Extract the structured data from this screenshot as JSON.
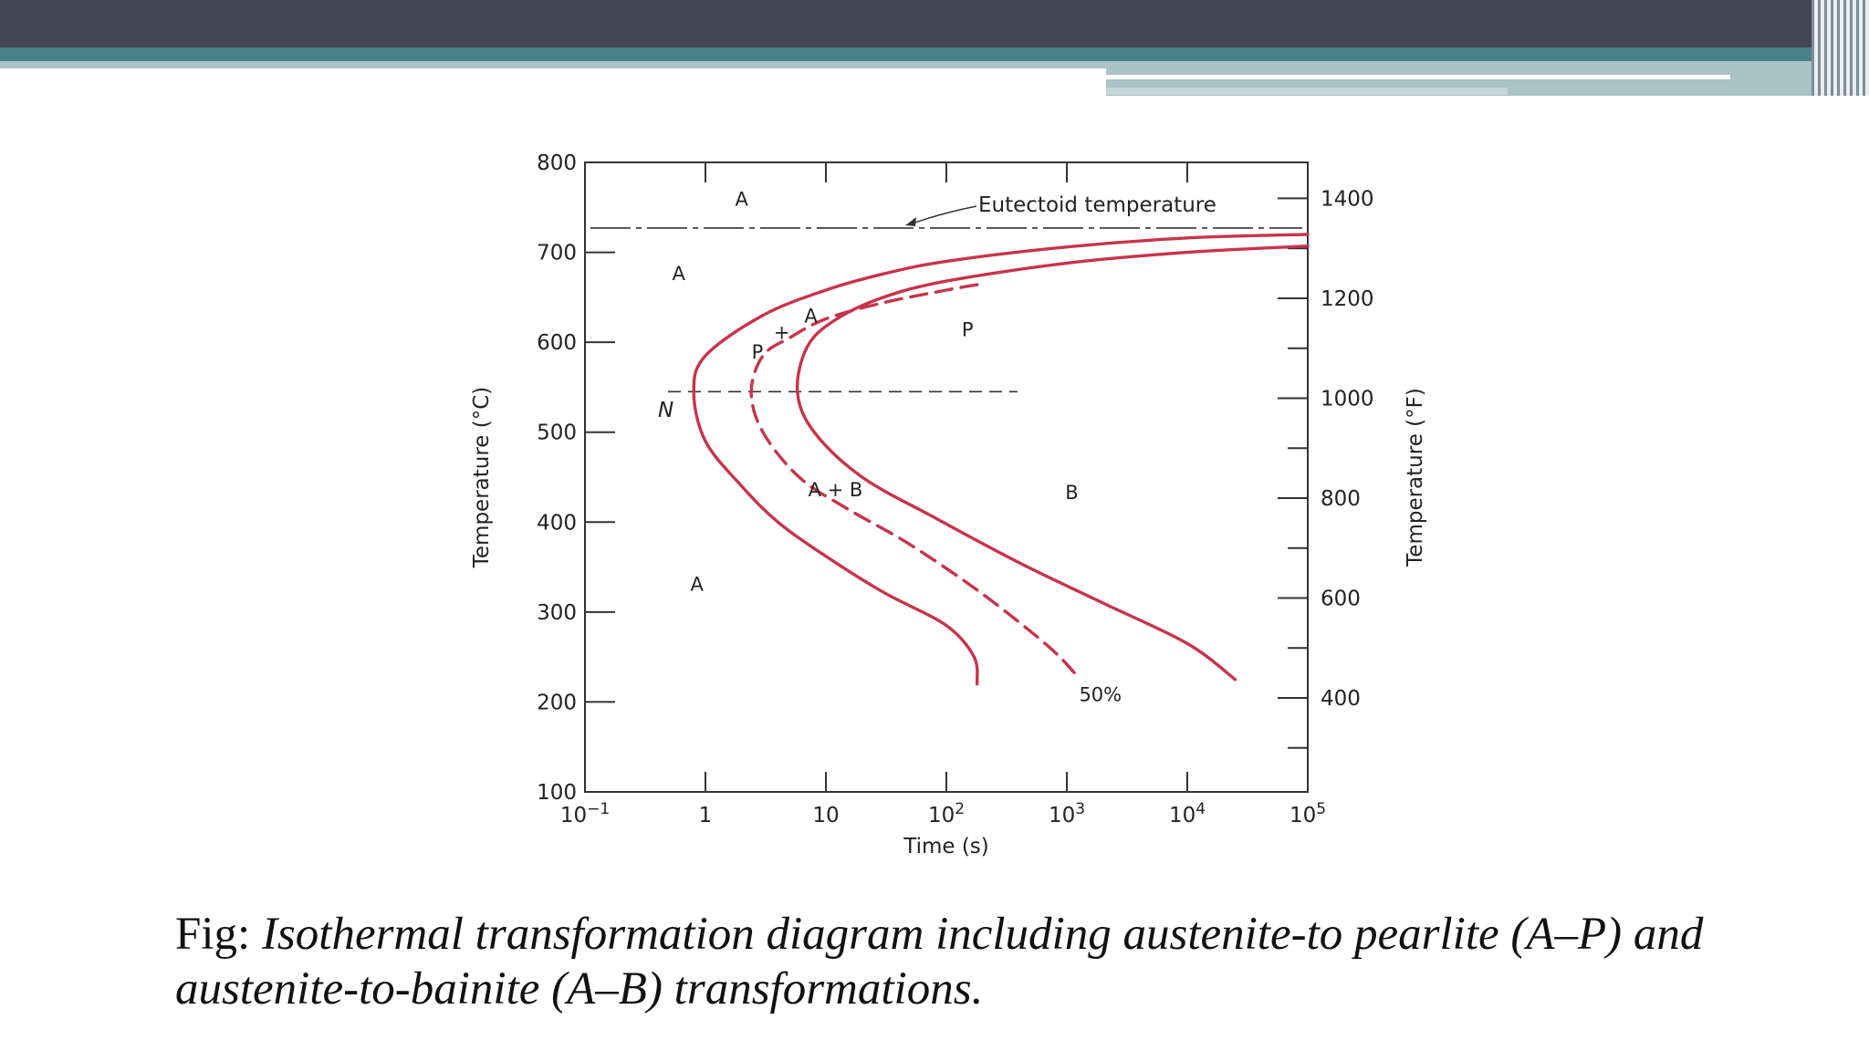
{
  "header": {
    "accent_dark": "#454558",
    "accent_teal": "#4a8187",
    "accent_light": "#a9c3c6"
  },
  "chart_data": {
    "type": "line",
    "xlabel": "Time (s)",
    "x_scale": "log",
    "xlim": [
      0.1,
      100000
    ],
    "x_ticks": [
      {
        "value": 0.1,
        "base": "10",
        "exp": "−1"
      },
      {
        "value": 1,
        "base": "1",
        "exp": ""
      },
      {
        "value": 10,
        "base": "10",
        "exp": ""
      },
      {
        "value": 100,
        "base": "10",
        "exp": "2"
      },
      {
        "value": 1000,
        "base": "10",
        "exp": "3"
      },
      {
        "value": 10000,
        "base": "10",
        "exp": "4"
      },
      {
        "value": 100000,
        "base": "10",
        "exp": "5"
      }
    ],
    "ylabel_left": "Temperature (°C)",
    "ylabel_right": "Temperature (°F)",
    "ylim": [
      100,
      800
    ],
    "y_ticks_left": [
      "100",
      "200",
      "300",
      "400",
      "500",
      "600",
      "700",
      "800"
    ],
    "y_ticks_right": [
      "400",
      "600",
      "800",
      "1000",
      "1200",
      "1400"
    ],
    "y_ticks_right_values": [
      400,
      600,
      800,
      1000,
      1200,
      1400
    ],
    "eutectoid_temperature": 727,
    "eutectoid_label": "Eutectoid temperature",
    "nose_temperature": 545,
    "series": [
      {
        "style": "solid",
        "points": [
          [
            100000,
            720
          ],
          [
            10000,
            716
          ],
          [
            1000,
            706
          ],
          [
            100,
            690
          ],
          [
            30,
            676
          ],
          [
            10,
            658
          ],
          [
            3,
            630
          ],
          [
            1,
            585
          ],
          [
            0.8,
            545
          ],
          [
            1,
            490
          ],
          [
            2,
            440
          ],
          [
            4,
            400
          ],
          [
            10,
            362
          ],
          [
            30,
            322
          ],
          [
            100,
            285
          ],
          [
            170,
            250
          ],
          [
            180,
            220
          ]
        ]
      },
      {
        "style": "dashed",
        "points": [
          [
            180,
            664
          ],
          [
            100,
            658
          ],
          [
            30,
            644
          ],
          [
            10,
            626
          ],
          [
            5,
            605
          ],
          [
            3,
            585
          ],
          [
            2.4,
            545
          ],
          [
            3,
            500
          ],
          [
            6,
            450
          ],
          [
            15,
            415
          ],
          [
            50,
            375
          ],
          [
            200,
            320
          ],
          [
            700,
            262
          ],
          [
            1200,
            230
          ]
        ]
      },
      {
        "style": "solid",
        "points": [
          [
            100000,
            707
          ],
          [
            10000,
            700
          ],
          [
            1000,
            688
          ],
          [
            100,
            668
          ],
          [
            30,
            650
          ],
          [
            12,
            625
          ],
          [
            7,
            595
          ],
          [
            5.8,
            545
          ],
          [
            8,
            500
          ],
          [
            20,
            450
          ],
          [
            80,
            405
          ],
          [
            400,
            355
          ],
          [
            2000,
            310
          ],
          [
            10000,
            265
          ],
          [
            25000,
            225
          ]
        ]
      }
    ],
    "region_labels": [
      {
        "text": "A",
        "x": 2,
        "y": 760
      },
      {
        "text": "A",
        "x": 0.6,
        "y": 677
      },
      {
        "text": "A",
        "x": 0.85,
        "y": 332
      },
      {
        "text": "P",
        "x": 150,
        "y": 615
      },
      {
        "text": "B",
        "x": 1100,
        "y": 434
      },
      {
        "text": "A + B",
        "x": 12,
        "y": 437
      },
      {
        "text": "50%",
        "x": 1900,
        "y": 209
      }
    ],
    "ap_labels": [
      {
        "text": "P",
        "x": 2.7,
        "y": 590
      },
      {
        "text": "+",
        "x": 4.3,
        "y": 612
      },
      {
        "text": "A",
        "x": 7.5,
        "y": 630
      }
    ],
    "nose_label": "N",
    "series_color": "#c8334b"
  },
  "caption": {
    "prefix": "Fig: ",
    "text": "Isothermal transformation diagram including austenite-to pearlite (A–P) and austenite-to-bainite (A–B) transformations."
  }
}
